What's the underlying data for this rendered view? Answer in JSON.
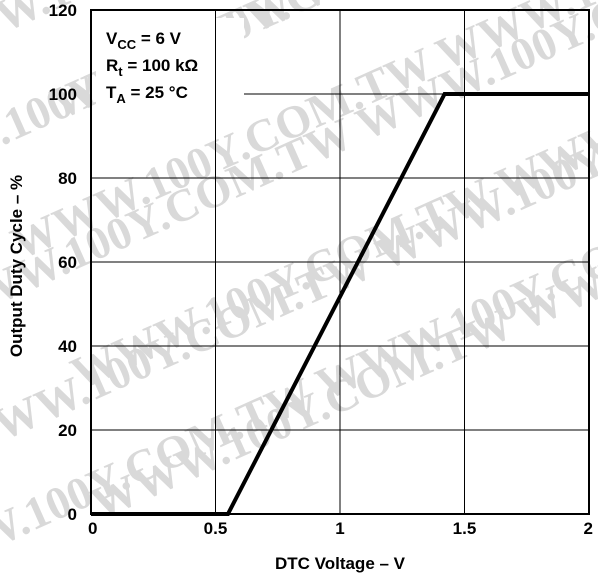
{
  "chart_data": {
    "type": "line",
    "xlabel": "DTC Voltage – V",
    "ylabel": "Output Duty Cycle – %",
    "xlim": [
      0,
      2
    ],
    "ylim": [
      0,
      120
    ],
    "xticks": [
      "0",
      "0.5",
      "1",
      "1.5",
      "2"
    ],
    "xtick_values": [
      0,
      0.5,
      1,
      1.5,
      2
    ],
    "yticks": [
      "0",
      "20",
      "40",
      "60",
      "80",
      "100",
      "120"
    ],
    "ytick_values": [
      0,
      20,
      40,
      60,
      80,
      100,
      120
    ],
    "grid": true,
    "series": [
      {
        "x": [
          0,
          0.55,
          1.42,
          2.0
        ],
        "y": [
          0,
          0,
          100,
          100
        ]
      }
    ],
    "annotations": {
      "vcc_main": "V",
      "vcc_sub": "CC",
      "vcc_rest": " = 6 V",
      "rt_main": "R",
      "rt_sub": "t",
      "rt_rest": " = 100 kΩ",
      "ta_main": "T",
      "ta_sub": "A",
      "ta_rest": " = 25 °C"
    },
    "line_color": "#000000",
    "grid_color": "#000000"
  },
  "watermark": "WWW.100Y.COM.TW"
}
